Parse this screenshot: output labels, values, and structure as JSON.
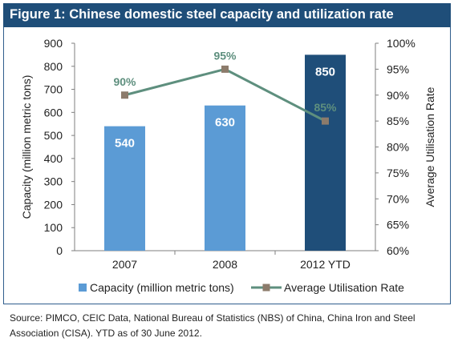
{
  "figure": {
    "title": "Figure 1: Chinese domestic steel capacity and utilization rate",
    "source": "Source: PIMCO, CEIC Data, National Bureau of Statistics (NBS) of China, China Iron and Steel Association (CISA). YTD as of 30 June 2012."
  },
  "chart_data": {
    "type": "bar",
    "categories": [
      "2007",
      "2008",
      "2012 YTD"
    ],
    "series": [
      {
        "name": "Capacity (million metric tons)",
        "type": "bar",
        "axis": "left",
        "values": [
          540,
          630,
          850
        ],
        "labels": [
          "540",
          "630",
          "850"
        ],
        "colors": [
          "#5b9bd5",
          "#5b9bd5",
          "#1f4e79"
        ]
      },
      {
        "name": "Average Utilisation Rate",
        "type": "line",
        "axis": "right",
        "values": [
          90,
          95,
          85
        ],
        "labels": [
          "90%",
          "95%",
          "85%"
        ],
        "line_color": "#5e8f7e",
        "marker_color": "#8c7b6b"
      }
    ],
    "ylabel": "Capacity (million metric tons)",
    "ylim": [
      0,
      900
    ],
    "yticks": [
      "0",
      "100",
      "200",
      "300",
      "400",
      "500",
      "600",
      "700",
      "800",
      "900"
    ],
    "y2label": "Average Utilisation Rate",
    "y2lim": [
      60,
      100
    ],
    "y2ticks": [
      "60%",
      "65%",
      "70%",
      "75%",
      "80%",
      "85%",
      "90%",
      "95%",
      "100%"
    ],
    "grid": false,
    "legend": "bottom"
  }
}
